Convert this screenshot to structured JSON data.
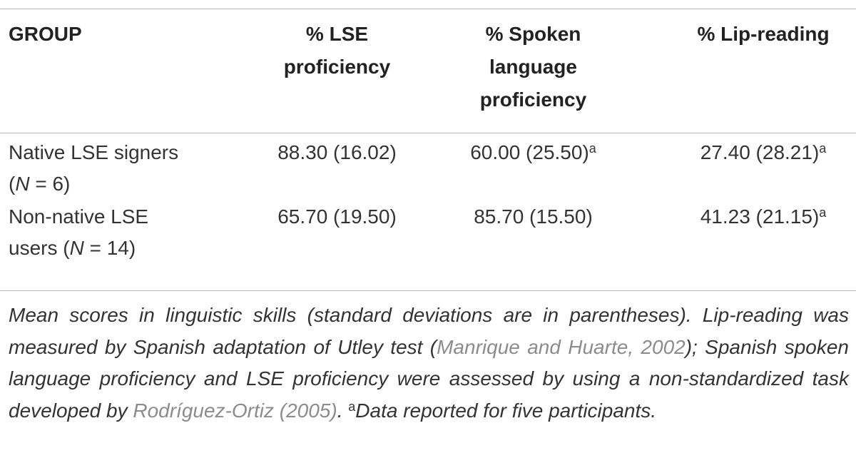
{
  "table": {
    "headers": {
      "group": [
        "GROUP"
      ],
      "lse": [
        "% LSE",
        "proficiency"
      ],
      "spoken": [
        "% Spoken",
        "language",
        "proficiency"
      ],
      "lip": [
        "% Lip-reading"
      ]
    },
    "rows": [
      {
        "group_line1": "Native LSE signers",
        "group_line2_pre": "(",
        "group_n": "N",
        "group_line2_post": " = 6)",
        "lse": "88.30 (16.02)",
        "spoken": "60.00 (25.50)",
        "spoken_note": "a",
        "lip": "27.40 (28.21)",
        "lip_note": "a"
      },
      {
        "group_line1": "Non-native LSE",
        "group_line2_pre": "users (",
        "group_n": "N",
        "group_line2_post": " = 14)",
        "lse": "65.70 (19.50)",
        "spoken": "85.70 (15.50)",
        "spoken_note": "",
        "lip": "41.23 (21.15)",
        "lip_note": "a"
      }
    ]
  },
  "caption": {
    "part1": "Mean scores in linguistic skills (standard deviations are in parentheses). Lip-reading was measured by Spanish adaptation of Utley test (",
    "cite1": "Manrique and Huarte, 2002",
    "part2": "); Spanish spoken language proficiency and LSE proficiency were assessed by using a non-standardized task developed by ",
    "cite2": "Rodríguez-Ortiz (2005)",
    "part3": ". ",
    "note_marker": "a",
    "part4": "Data reported for five participants."
  }
}
